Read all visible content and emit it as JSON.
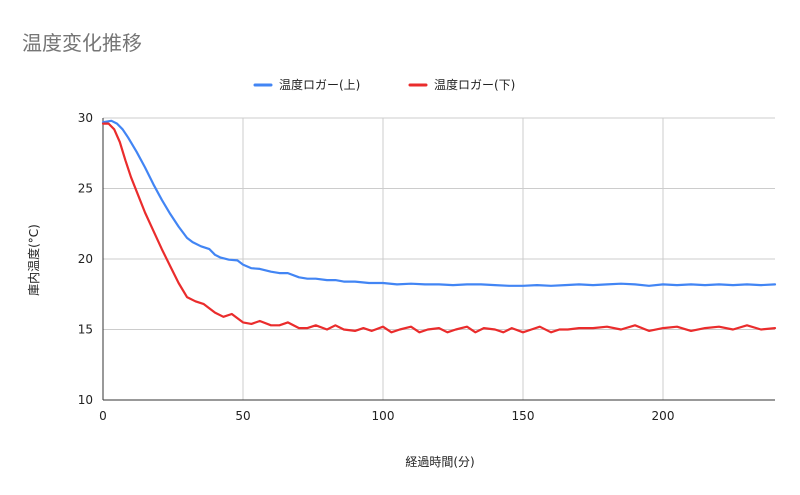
{
  "chart_data": {
    "type": "line",
    "title": "温度変化推移",
    "xlabel": "経過時間(分)",
    "ylabel": "庫内温度(°C)",
    "xlim": [
      0,
      240
    ],
    "ylim": [
      10,
      30
    ],
    "x_ticks": [
      0,
      50,
      100,
      150,
      200
    ],
    "y_ticks": [
      10,
      15,
      20,
      25,
      30
    ],
    "grid": true,
    "legend_position": "top",
    "series": [
      {
        "name": "温度ロガー(上)",
        "color": "#4285f4",
        "x": [
          0,
          3,
          5,
          7,
          9,
          12,
          15,
          18,
          21,
          24,
          27,
          30,
          32,
          35,
          38,
          40,
          42,
          45,
          48,
          50,
          53,
          56,
          60,
          63,
          66,
          70,
          73,
          76,
          80,
          83,
          86,
          90,
          95,
          100,
          105,
          110,
          115,
          120,
          125,
          130,
          135,
          140,
          145,
          150,
          155,
          160,
          165,
          170,
          175,
          180,
          185,
          190,
          195,
          200,
          205,
          210,
          215,
          220,
          225,
          230,
          235,
          240
        ],
        "values": [
          29.7,
          29.8,
          29.6,
          29.2,
          28.6,
          27.6,
          26.5,
          25.3,
          24.2,
          23.2,
          22.3,
          21.5,
          21.2,
          20.9,
          20.7,
          20.3,
          20.1,
          19.95,
          19.9,
          19.6,
          19.35,
          19.3,
          19.1,
          19.0,
          19.0,
          18.7,
          18.6,
          18.6,
          18.5,
          18.5,
          18.4,
          18.4,
          18.3,
          18.3,
          18.2,
          18.25,
          18.2,
          18.2,
          18.15,
          18.2,
          18.2,
          18.15,
          18.1,
          18.1,
          18.15,
          18.1,
          18.15,
          18.2,
          18.15,
          18.2,
          18.25,
          18.2,
          18.1,
          18.2,
          18.15,
          18.2,
          18.15,
          18.2,
          18.15,
          18.2,
          18.15,
          18.2
        ]
      },
      {
        "name": "温度ロガー(下)",
        "color": "#ea2c2c",
        "x": [
          0,
          2,
          4,
          6,
          8,
          10,
          12,
          15,
          18,
          21,
          24,
          27,
          30,
          33,
          36,
          40,
          43,
          46,
          50,
          53,
          56,
          60,
          63,
          66,
          70,
          73,
          76,
          80,
          83,
          86,
          90,
          93,
          96,
          100,
          103,
          106,
          110,
          113,
          116,
          120,
          123,
          126,
          130,
          133,
          136,
          140,
          143,
          146,
          150,
          153,
          156,
          160,
          163,
          166,
          170,
          175,
          180,
          185,
          190,
          195,
          200,
          205,
          210,
          215,
          220,
          225,
          230,
          235,
          240
        ],
        "values": [
          29.6,
          29.6,
          29.2,
          28.3,
          27.0,
          25.8,
          24.8,
          23.3,
          22.0,
          20.7,
          19.5,
          18.3,
          17.3,
          17.0,
          16.8,
          16.2,
          15.9,
          16.1,
          15.5,
          15.4,
          15.6,
          15.3,
          15.3,
          15.5,
          15.1,
          15.1,
          15.3,
          15.0,
          15.3,
          15.0,
          14.9,
          15.1,
          14.9,
          15.2,
          14.8,
          15.0,
          15.2,
          14.8,
          15.0,
          15.1,
          14.8,
          15.0,
          15.2,
          14.8,
          15.1,
          15.0,
          14.8,
          15.1,
          14.8,
          15.0,
          15.2,
          14.8,
          15.0,
          15.0,
          15.1,
          15.1,
          15.2,
          15.0,
          15.3,
          14.9,
          15.1,
          15.2,
          14.9,
          15.1,
          15.2,
          15.0,
          15.3,
          15.0,
          15.1
        ]
      }
    ]
  }
}
